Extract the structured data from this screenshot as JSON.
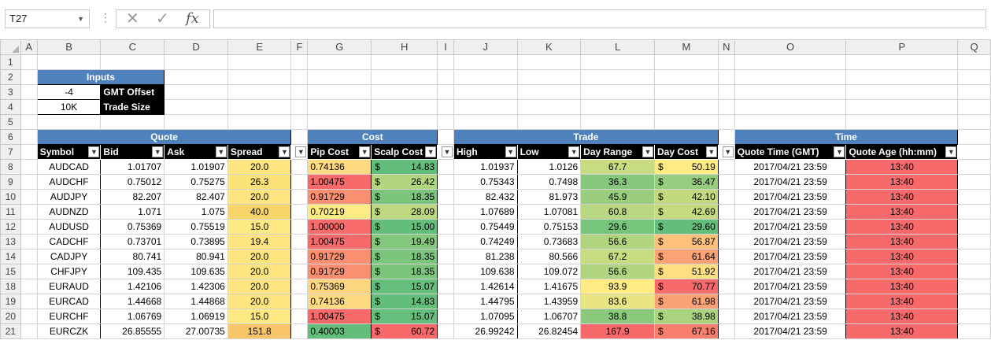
{
  "name_box": {
    "value": "T27"
  },
  "formula_bar": {
    "cancel_icon": "x-icon",
    "enter_icon": "check-icon",
    "fx_label": "fx",
    "value": ""
  },
  "columns": [
    "A",
    "B",
    "C",
    "D",
    "E",
    "F",
    "G",
    "H",
    "I",
    "J",
    "K",
    "L",
    "M",
    "N",
    "O",
    "P",
    "Q"
  ],
  "inputs": {
    "title": "Inputs",
    "gmt_offset_value": "-4",
    "gmt_offset_label": "GMT Offset",
    "trade_size_value": "10K",
    "trade_size_label": "Trade Size"
  },
  "groups": {
    "quote": "Quote",
    "cost": "Cost",
    "trade": "Trade",
    "time": "Time"
  },
  "headers": {
    "symbol": "Symbol",
    "bid": "Bid",
    "ask": "Ask",
    "spread": "Spread",
    "pip_cost": "Pip Cost",
    "scalp_cost": "Scalp Cost",
    "high": "High",
    "low": "Low",
    "day_range": "Day Range",
    "day_cost": "Day Cost",
    "quote_time": "Quote Time (GMT)",
    "quote_age": "Quote Age (hh:mm)"
  },
  "rows": [
    {
      "r": "8",
      "symbol": "AUDCAD",
      "bid": "1.01707",
      "ask": "1.01907",
      "spread": "20.0",
      "pip": "0.74136",
      "scalp": "14.83",
      "high": "1.01937",
      "low": "1.0126",
      "range": "67.7",
      "daycost": "50.19",
      "time": "2017/04/21 23:59",
      "age": "13:40"
    },
    {
      "r": "9",
      "symbol": "AUDCHF",
      "bid": "0.75012",
      "ask": "0.75275",
      "spread": "26.3",
      "pip": "1.00475",
      "scalp": "26.42",
      "high": "0.75343",
      "low": "0.7498",
      "range": "36.3",
      "daycost": "36.47",
      "time": "2017/04/21 23:59",
      "age": "13:40"
    },
    {
      "r": "10",
      "symbol": "AUDJPY",
      "bid": "82.207",
      "ask": "82.407",
      "spread": "20.0",
      "pip": "0.91729",
      "scalp": "18.35",
      "high": "82.432",
      "low": "81.973",
      "range": "45.9",
      "daycost": "42.10",
      "time": "2017/04/21 23:59",
      "age": "13:40"
    },
    {
      "r": "11",
      "symbol": "AUDNZD",
      "bid": "1.071",
      "ask": "1.075",
      "spread": "40.0",
      "pip": "0.70219",
      "scalp": "28.09",
      "high": "1.07689",
      "low": "1.07081",
      "range": "60.8",
      "daycost": "42.69",
      "time": "2017/04/21 23:59",
      "age": "13:40"
    },
    {
      "r": "12",
      "symbol": "AUDUSD",
      "bid": "0.75369",
      "ask": "0.75519",
      "spread": "15.0",
      "pip": "1.00000",
      "scalp": "15.00",
      "high": "0.75449",
      "low": "0.75153",
      "range": "29.6",
      "daycost": "29.60",
      "time": "2017/04/21 23:59",
      "age": "13:40"
    },
    {
      "r": "13",
      "symbol": "CADCHF",
      "bid": "0.73701",
      "ask": "0.73895",
      "spread": "19.4",
      "pip": "1.00475",
      "scalp": "19.49",
      "high": "0.74249",
      "low": "0.73683",
      "range": "56.6",
      "daycost": "56.87",
      "time": "2017/04/21 23:59",
      "age": "13:40"
    },
    {
      "r": "14",
      "symbol": "CADJPY",
      "bid": "80.741",
      "ask": "80.941",
      "spread": "20.0",
      "pip": "0.91729",
      "scalp": "18.35",
      "high": "81.238",
      "low": "80.566",
      "range": "67.2",
      "daycost": "61.64",
      "time": "2017/04/21 23:59",
      "age": "13:40"
    },
    {
      "r": "15",
      "symbol": "CHFJPY",
      "bid": "109.435",
      "ask": "109.635",
      "spread": "20.0",
      "pip": "0.91729",
      "scalp": "18.35",
      "high": "109.638",
      "low": "109.072",
      "range": "56.6",
      "daycost": "51.92",
      "time": "2017/04/21 23:59",
      "age": "13:40"
    },
    {
      "r": "18",
      "symbol": "EURAUD",
      "bid": "1.42106",
      "ask": "1.42306",
      "spread": "20.0",
      "pip": "0.75369",
      "scalp": "15.07",
      "high": "1.42614",
      "low": "1.41675",
      "range": "93.9",
      "daycost": "70.77",
      "time": "2017/04/21 23:59",
      "age": "13:40"
    },
    {
      "r": "19",
      "symbol": "EURCAD",
      "bid": "1.44668",
      "ask": "1.44868",
      "spread": "20.0",
      "pip": "0.74136",
      "scalp": "14.83",
      "high": "1.44795",
      "low": "1.43959",
      "range": "83.6",
      "daycost": "61.98",
      "time": "2017/04/21 23:59",
      "age": "13:40"
    },
    {
      "r": "20",
      "symbol": "EURCHF",
      "bid": "1.06769",
      "ask": "1.06919",
      "spread": "15.0",
      "pip": "1.00475",
      "scalp": "15.07",
      "high": "1.07095",
      "low": "1.06707",
      "range": "38.8",
      "daycost": "38.98",
      "time": "2017/04/21 23:59",
      "age": "13:40"
    },
    {
      "r": "21",
      "symbol": "EURCZK",
      "bid": "26.85555",
      "ask": "27.00735",
      "spread": "151.8",
      "pip": "0.40003",
      "scalp": "60.72",
      "high": "26.99242",
      "low": "26.82454",
      "range": "167.9",
      "daycost": "67.16",
      "time": "2017/04/21 23:59",
      "age": "13:40"
    }
  ],
  "colors": {
    "group_header": "#4f81bd",
    "header_bg": "#000000",
    "age": "#f8696b",
    "spread_scale": [
      "#f8d569",
      "#ffe984"
    ],
    "cost_scale_low": "#63be7b",
    "cost_scale_mid": "#ffeb84",
    "cost_scale_high": "#f8696b"
  }
}
